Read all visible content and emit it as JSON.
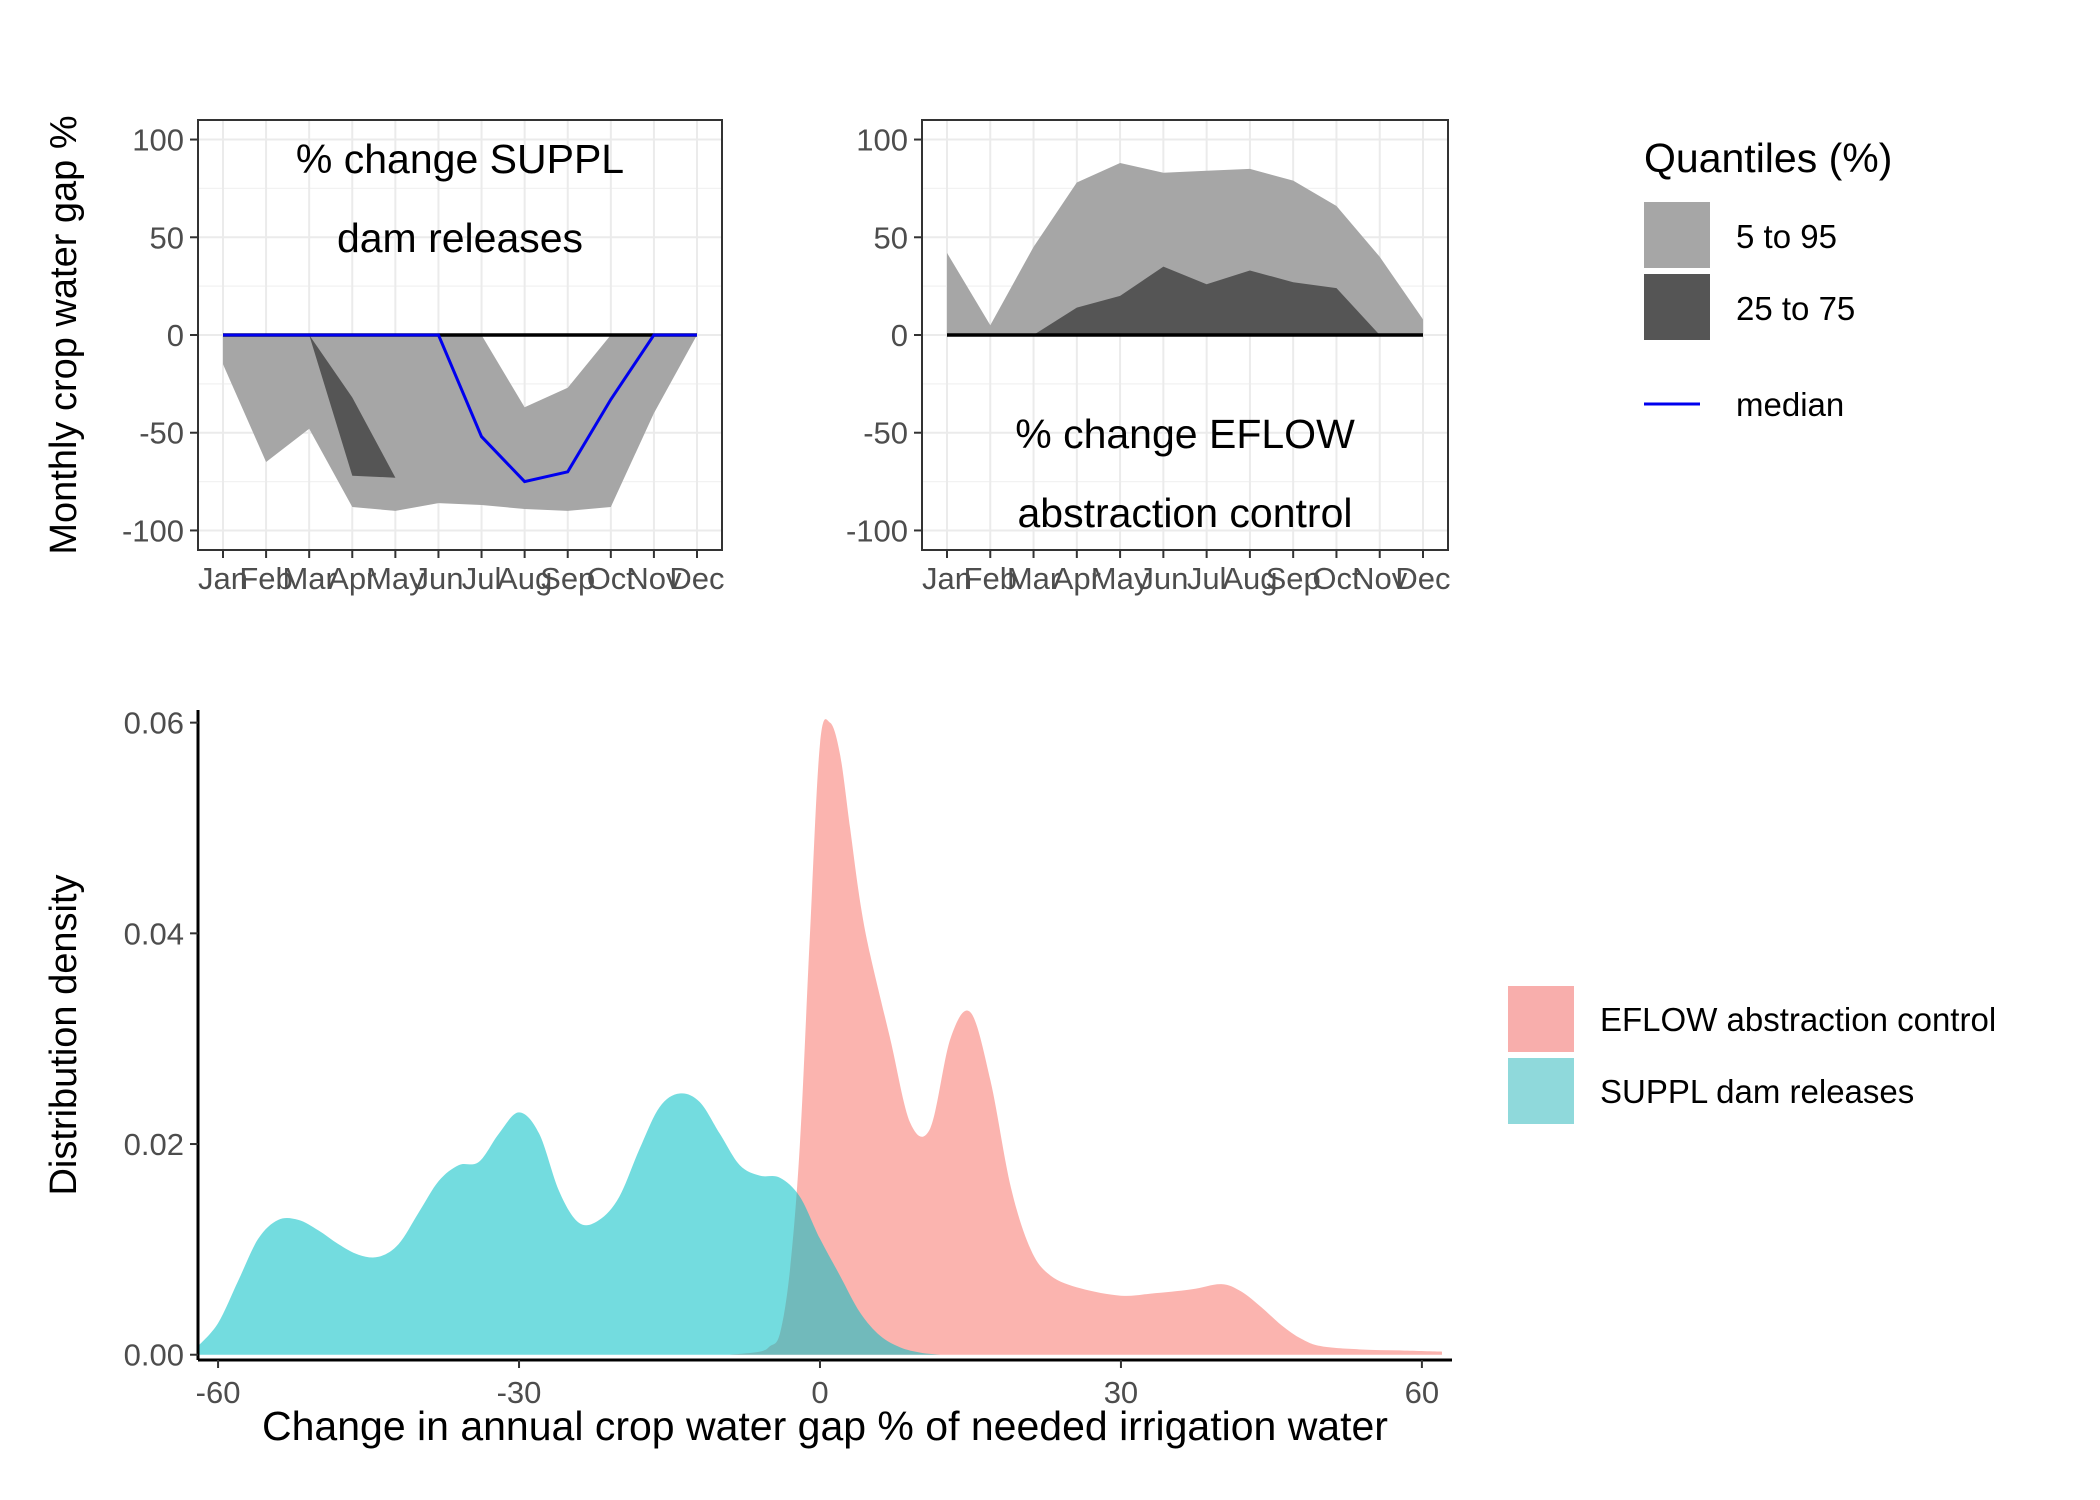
{
  "monthly_ylabel": "Monthly crop water gap %",
  "legend_top": {
    "title": "Quantiles (%)",
    "items": [
      {
        "label": "5 to 95",
        "color": "#a6a6a6"
      },
      {
        "label": "25 to 75",
        "color": "#555555"
      },
      {
        "label": "median",
        "color": "#0000ee"
      }
    ]
  },
  "legend_bottom": {
    "items": [
      {
        "label": "EFLOW abstraction control",
        "color": "#f8aeac"
      },
      {
        "label": "SUPPL dam releases",
        "color": "#8fd9db"
      }
    ]
  },
  "chart_data": [
    {
      "type": "area",
      "annotation": [
        "% change SUPPL",
        "dam releases"
      ],
      "categories": [
        "Jan",
        "Feb",
        "Mar",
        "Apr",
        "May",
        "Jun",
        "Jul",
        "Aug",
        "Sep",
        "Oct",
        "Nov",
        "Dec"
      ],
      "ylim": [
        -110,
        110
      ],
      "yticks": [
        100,
        50,
        0,
        -50,
        -100
      ],
      "ytick_labels": [
        "100",
        "50",
        "0",
        "-50",
        "-100"
      ],
      "grid": true,
      "q5": [
        -15,
        -65,
        -48,
        -88,
        -90,
        -86,
        -87,
        -89,
        -90,
        -88,
        -40,
        0
      ],
      "q95": [
        0,
        0,
        0,
        0,
        0,
        0,
        0,
        -37,
        -27,
        0,
        0,
        0
      ],
      "q25": [
        0,
        0,
        0,
        -72,
        -73,
        -75,
        -81,
        -85,
        -86,
        -70,
        0,
        0
      ],
      "q75": [
        0,
        0,
        0,
        -32,
        -73,
        -75,
        -81,
        -85,
        -86,
        -70,
        0,
        0
      ],
      "median": [
        0,
        0,
        0,
        0,
        0,
        0,
        -52,
        -75,
        -70,
        -33,
        0,
        0
      ]
    },
    {
      "type": "area",
      "annotation": [
        "% change EFLOW",
        "abstraction control"
      ],
      "categories": [
        "Jan",
        "Feb",
        "Mar",
        "Apr",
        "May",
        "Jun",
        "Jul",
        "Aug",
        "Sep",
        "Oct",
        "Nov",
        "Dec"
      ],
      "ylim": [
        -110,
        110
      ],
      "yticks": [
        100,
        50,
        0,
        -50,
        -100
      ],
      "ytick_labels": [
        "100",
        "50",
        "0",
        "-50",
        "-100"
      ],
      "grid": true,
      "q5": [
        0,
        0,
        0,
        0,
        0,
        0,
        0,
        0,
        0,
        0,
        0,
        0
      ],
      "q95": [
        42,
        5,
        45,
        78,
        88,
        83,
        84,
        85,
        79,
        66,
        40,
        8
      ],
      "q25": [
        0,
        0,
        0,
        0,
        0,
        0,
        0,
        0,
        0,
        0,
        0,
        0
      ],
      "q75": [
        0,
        0,
        0,
        14,
        20,
        35,
        26,
        33,
        27,
        24,
        0,
        0
      ],
      "median": [
        0,
        0,
        0,
        0,
        0,
        0,
        0,
        0,
        0,
        0,
        0,
        0
      ]
    },
    {
      "type": "area",
      "xlabel": "Change in annual crop water gap % of needed irrigation water",
      "ylabel": "Distribution density",
      "xlim": [
        -62,
        63
      ],
      "ylim": [
        -0.0005,
        0.0612
      ],
      "xticks": [
        -60,
        -30,
        0,
        30,
        60
      ],
      "xtick_labels": [
        "-60",
        "-30",
        "0",
        "30",
        "60"
      ],
      "yticks": [
        0,
        0.02,
        0.04,
        0.06
      ],
      "ytick_labels": [
        "0.00",
        "0.02",
        "0.04",
        "0.06"
      ],
      "grid": false,
      "series": [
        {
          "name": "EFLOW abstraction control",
          "x": [
            -9,
            -6,
            -5,
            -4,
            -3,
            -2,
            -1,
            0,
            1,
            2,
            3,
            4,
            5,
            7,
            9,
            11,
            13,
            15,
            17,
            19,
            21,
            23,
            26,
            30,
            33,
            37,
            40,
            42,
            44,
            46,
            48,
            50,
            54,
            58,
            62
          ],
          "y": [
            0,
            0.0003,
            0.0008,
            0.002,
            0.008,
            0.02,
            0.04,
            0.058,
            0.06,
            0.057,
            0.05,
            0.043,
            0.038,
            0.03,
            0.022,
            0.0215,
            0.03,
            0.0325,
            0.026,
            0.016,
            0.01,
            0.0075,
            0.0063,
            0.0056,
            0.0058,
            0.0062,
            0.0067,
            0.006,
            0.0045,
            0.0028,
            0.0015,
            0.0008,
            0.0005,
            0.0004,
            0.0003
          ]
        },
        {
          "name": "SUPPL dam releases",
          "x": [
            -62,
            -60,
            -58,
            -56,
            -54,
            -52,
            -50,
            -48,
            -46,
            -44,
            -42,
            -40,
            -38,
            -36,
            -34,
            -32,
            -30,
            -28,
            -26,
            -24,
            -22,
            -20,
            -18,
            -16,
            -14,
            -12,
            -10,
            -8,
            -6,
            -4,
            -2,
            0,
            2,
            4,
            6,
            8,
            10,
            12
          ],
          "y": [
            0.0008,
            0.003,
            0.007,
            0.011,
            0.0128,
            0.0128,
            0.0118,
            0.0105,
            0.0095,
            0.0093,
            0.0105,
            0.0135,
            0.0165,
            0.018,
            0.0183,
            0.021,
            0.023,
            0.021,
            0.0155,
            0.0125,
            0.0128,
            0.015,
            0.0195,
            0.0235,
            0.0248,
            0.024,
            0.021,
            0.018,
            0.017,
            0.0168,
            0.015,
            0.011,
            0.0075,
            0.004,
            0.0018,
            0.0007,
            0.0002,
            0
          ]
        }
      ]
    }
  ]
}
